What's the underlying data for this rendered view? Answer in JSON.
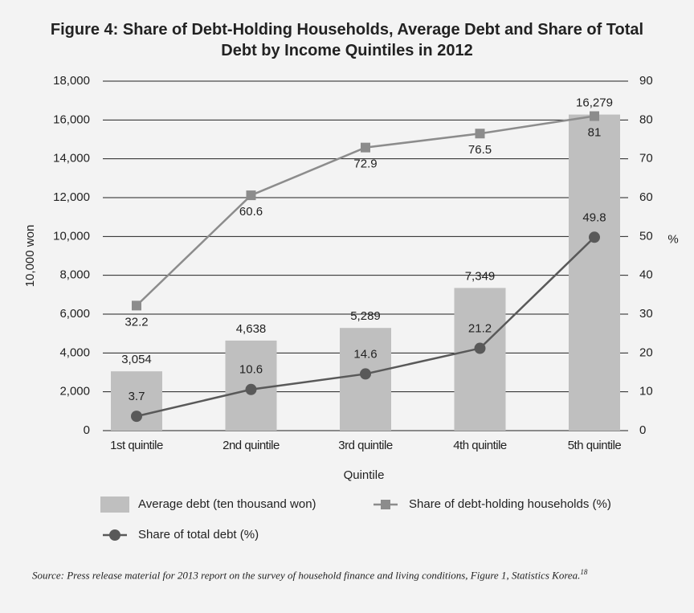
{
  "chart_data": {
    "type": "bar",
    "title": "Figure 4: Share of Debt-Holding Households, Average Debt and Share of Total Debt by Income Quintiles in 2012",
    "x_label": "Quintile",
    "y_label": "10,000 won",
    "y2_label": "%",
    "categories": [
      "1st quintile",
      "2nd quintile",
      "3rd quintile",
      "4th quintile",
      "5th quintile"
    ],
    "series": [
      {
        "name": "Average debt (ten thousand won)",
        "type": "bar",
        "color": "#bfbfbf",
        "values": [
          3054,
          4638,
          5289,
          7349,
          16279
        ],
        "value_labels": [
          "3,054",
          "4,638",
          "5,289",
          "7,349",
          "16,279"
        ]
      },
      {
        "name": "Share of debt-holding households (%)",
        "type": "line",
        "marker": "square",
        "axis": "y2",
        "color": "#8c8c8c",
        "values": [
          32.2,
          60.6,
          72.9,
          76.5,
          81
        ]
      },
      {
        "name": "Share of total debt (%)",
        "type": "line",
        "marker": "circle",
        "axis": "y2",
        "color": "#595959",
        "values": [
          3.7,
          10.6,
          14.6,
          21.2,
          49.8
        ]
      }
    ],
    "ylim": [
      0,
      18000
    ],
    "yticks": [
      0,
      {
        "value": 2000,
        "label": "2,000"
      },
      {
        "value": 4000,
        "label": "4,000"
      },
      {
        "value": 6000,
        "label": "6,000"
      },
      {
        "value": 8000,
        "label": "8,000"
      },
      {
        "value": 10000,
        "label": "10,000"
      },
      {
        "value": 12000,
        "label": "12,000"
      },
      {
        "value": 14000,
        "label": "14,000"
      },
      {
        "value": 16000,
        "label": "16,000"
      },
      {
        "value": 18000,
        "label": "18,000"
      }
    ],
    "y2lim": [
      0,
      90
    ],
    "y2ticks": [
      0,
      10,
      20,
      30,
      40,
      50,
      60,
      70,
      80,
      90
    ],
    "grid": true,
    "legend": "bottom",
    "source": "Source: Press release material for 2013 report on the survey of household finance and living conditions, Figure 1, Statistics Korea.",
    "source_note": "18"
  }
}
